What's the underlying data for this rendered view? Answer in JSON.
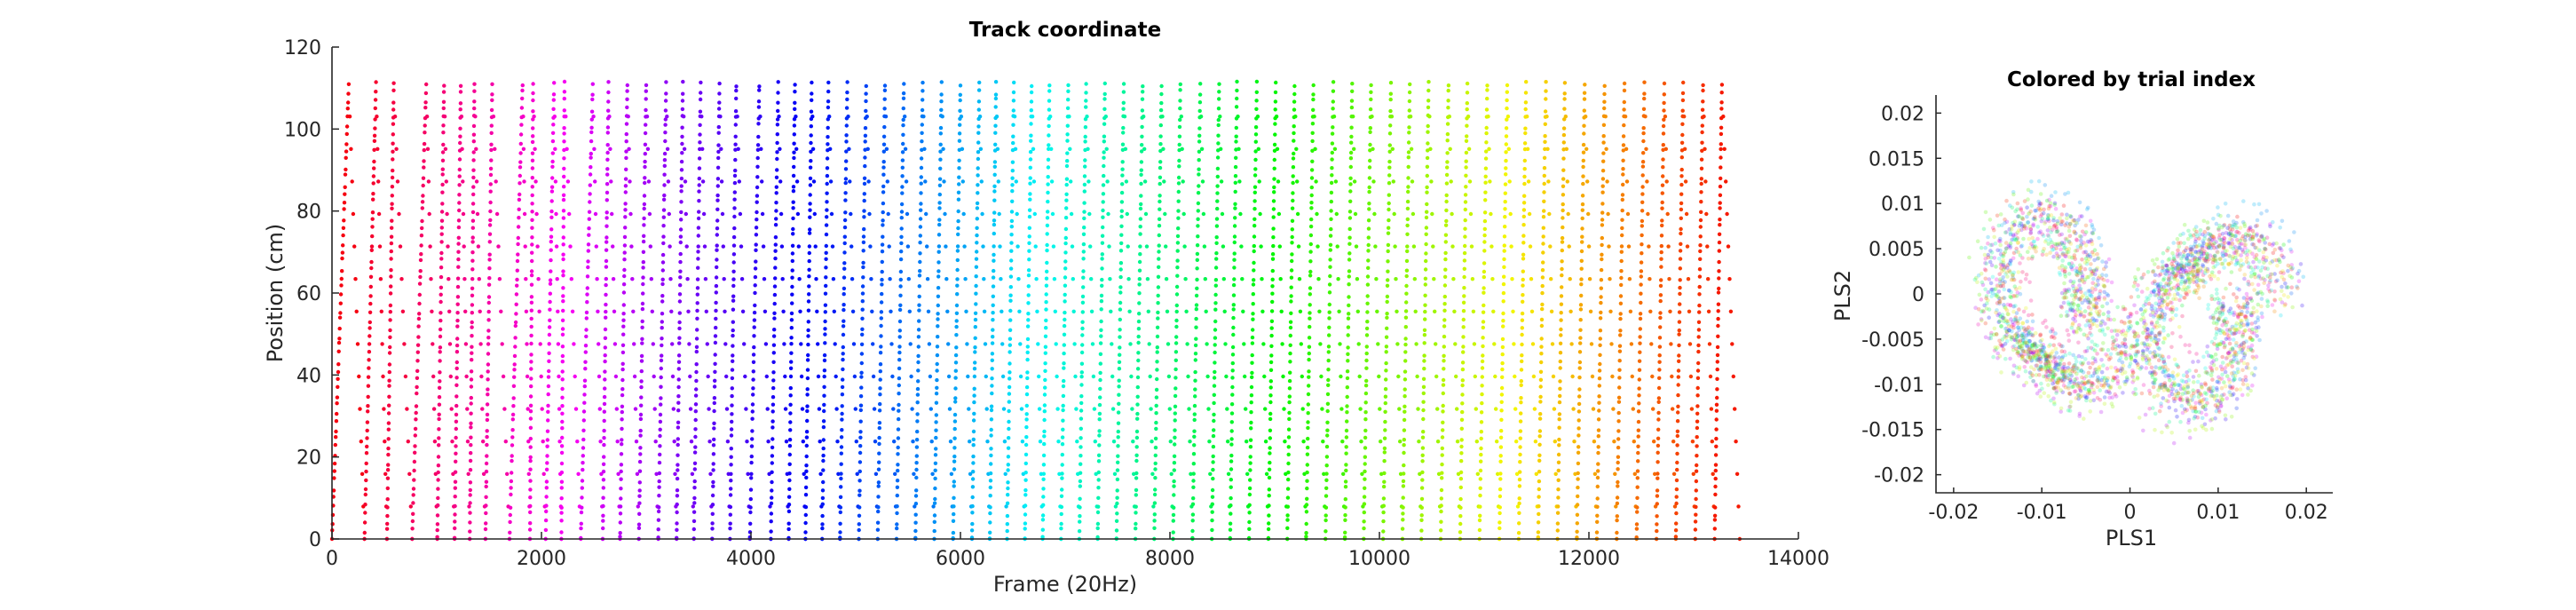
{
  "chart_data": [
    {
      "type": "scatter",
      "title": "Track coordinate",
      "xlabel": "Frame (20Hz)",
      "ylabel": "Position (cm)",
      "xlim": [
        0,
        14000
      ],
      "ylim": [
        0,
        120
      ],
      "xticks": [
        0,
        2000,
        4000,
        6000,
        8000,
        10000,
        12000,
        14000
      ],
      "yticks": [
        0,
        20,
        40,
        60,
        80,
        100,
        120
      ],
      "grid": false,
      "color_by": "trial index (hue red→orange→yellow→green→cyan→blue→purple→magenta→red)",
      "series": [
        {
          "track_min_cm": 0,
          "track_max_cm": 111,
          "trial_start_frames": [
            0,
            330,
            750,
            1180,
            1580,
            1990,
            2380,
            2820,
            3210,
            3620,
            4050,
            4470,
            4880,
            5290,
            5700,
            6120,
            6540,
            6950,
            7360,
            7780,
            8190,
            8600,
            9010,
            9420,
            9840,
            10250,
            10660,
            11070,
            11480,
            11900,
            12310,
            12720,
            13130,
            13440
          ],
          "peak_frames": [
            160,
            420,
            590,
            900,
            1070,
            1230,
            1360,
            1530,
            1820,
            1920,
            2120,
            2220,
            2490,
            2640,
            2820,
            3000,
            3190,
            3350,
            3520,
            3700,
            3860,
            4080,
            4260,
            4420,
            4580,
            4740,
            4920,
            5100,
            5280,
            5460,
            5640,
            5820,
            6000,
            6180,
            6340,
            6510,
            6680,
            6850,
            7030,
            7200,
            7380,
            7560,
            7740,
            7920,
            8100,
            8290,
            8470,
            8640,
            8830,
            9010,
            9190,
            9370,
            9560,
            9740,
            9920,
            10110,
            10290,
            10470,
            10660,
            10840,
            11030,
            11220,
            11400,
            11590,
            11770,
            11960,
            12150,
            12340,
            12530,
            12720,
            12900,
            13090,
            13270
          ]
        }
      ]
    },
    {
      "type": "scatter",
      "title": "Colored by trial index",
      "xlabel": "PLS1",
      "ylabel": "PLS2",
      "xlim": [
        -0.022,
        0.023
      ],
      "ylim": [
        -0.022,
        0.022
      ],
      "xticks": [
        -0.02,
        -0.01,
        0,
        0.01,
        0.02
      ],
      "yticks": [
        -0.02,
        -0.015,
        -0.01,
        -0.005,
        0,
        0.005,
        0.01,
        0.015,
        0.02
      ],
      "grid": false,
      "point_alpha": 0.25,
      "series": [
        {
          "shape": "two overlapping lobes",
          "lobe_centers": [
            [
              -0.008,
              -0.004
            ],
            [
              0.008,
              -0.004
            ]
          ],
          "x_extent": [
            -0.02,
            0.023
          ],
          "y_extent": [
            -0.022,
            0.021
          ]
        }
      ]
    }
  ]
}
